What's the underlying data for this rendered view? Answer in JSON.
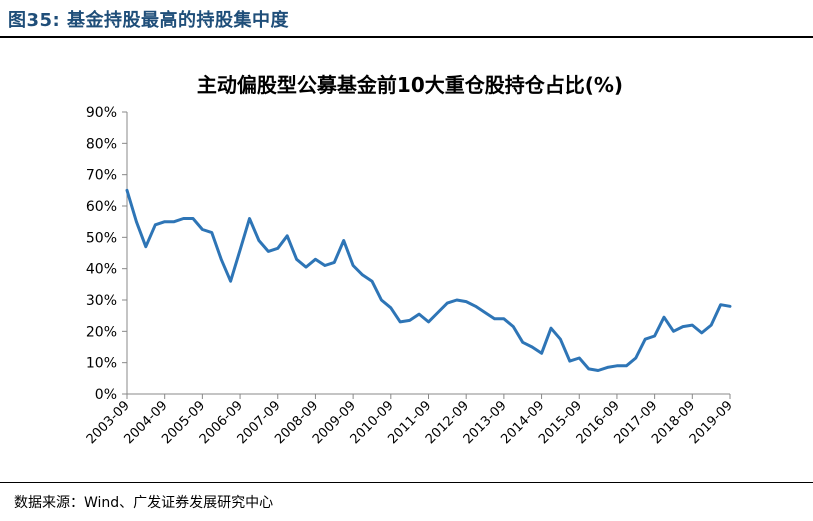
{
  "figure": {
    "label": "图35:",
    "title": "基金持股最高的持股集中度"
  },
  "source": "数据来源：Wind、广发证券发展研究中心",
  "colors": {
    "line": "#2e75b6",
    "header": "#1f4e79"
  },
  "chart_data": {
    "type": "line",
    "title": "主动偏股型公募基金前10大重仓股持仓占比(%)",
    "xlabel": "",
    "ylabel": "",
    "ylim": [
      0,
      90
    ],
    "yticks": [
      "0%",
      "10%",
      "20%",
      "30%",
      "40%",
      "50%",
      "60%",
      "70%",
      "80%",
      "90%"
    ],
    "xticks": [
      "2003-09",
      "2004-09",
      "2005-09",
      "2006-09",
      "2007-09",
      "2008-09",
      "2009-09",
      "2010-09",
      "2011-09",
      "2012-09",
      "2013-09",
      "2014-09",
      "2015-09",
      "2016-09",
      "2017-09",
      "2018-09",
      "2019-09"
    ],
    "grid": false,
    "series": [
      {
        "values": [
          65,
          55,
          47,
          54,
          55,
          55,
          56,
          56,
          52.5,
          51.5,
          43,
          36,
          46,
          56,
          49,
          45.5,
          46.5,
          50.5,
          43,
          40.5,
          43,
          41,
          42,
          49,
          41,
          38,
          36,
          30,
          27.5,
          23,
          23.5,
          25.5,
          23,
          26,
          29,
          30,
          29.5,
          28,
          26,
          24,
          24,
          21.5,
          16.5,
          15,
          13,
          21,
          17.5,
          10.5,
          11.5,
          8,
          7.5,
          8.5,
          9,
          9,
          11.5,
          17.5,
          18.5,
          24.5,
          20,
          21.5,
          22,
          19.5,
          22,
          28.5,
          28
        ]
      }
    ]
  }
}
